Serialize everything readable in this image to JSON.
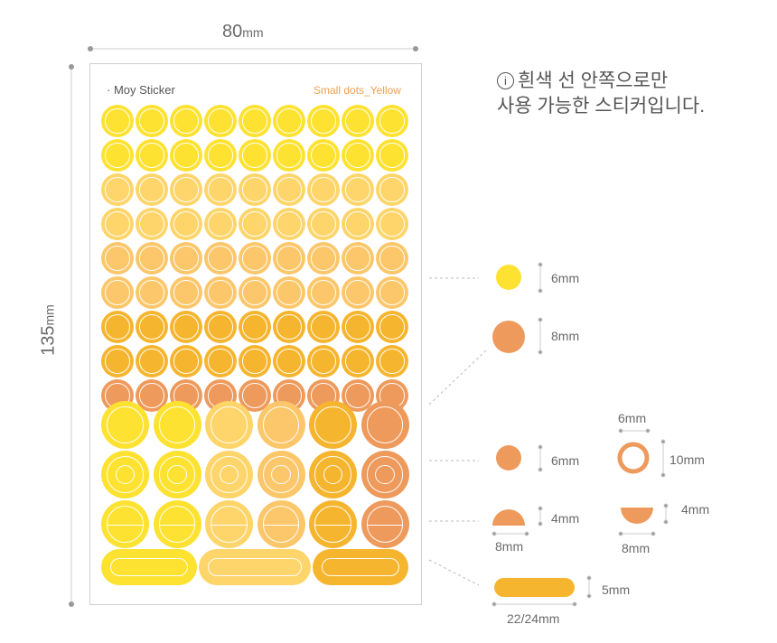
{
  "dimensions": {
    "width_number": "80",
    "width_unit": "mm",
    "height_number": "135",
    "height_unit": "mm"
  },
  "sheet": {
    "brand": "· Moy Sticker",
    "product": "Small dots_Yellow"
  },
  "note": {
    "icon": "info-circle-icon",
    "line1": "흰색 선 안쪽으로만",
    "line2": "사용 가능한 스티커입니다."
  },
  "colors": {
    "bright_yellow": "#fde232",
    "light_yellow": "#fdd56a",
    "peach": "#fbc76a",
    "gold": "#f6b52e",
    "orange": "#ee9a5c"
  },
  "specs": {
    "dot_small": "6mm",
    "dot_large": "8mm",
    "dot_mid": "6mm",
    "ring_width": "6mm",
    "ring_height": "10mm",
    "half_left_height": "4mm",
    "half_left_width": "8mm",
    "half_right_height": "4mm",
    "half_right_width": "8mm",
    "bar_height": "5mm",
    "bar_width": "22/24mm"
  }
}
